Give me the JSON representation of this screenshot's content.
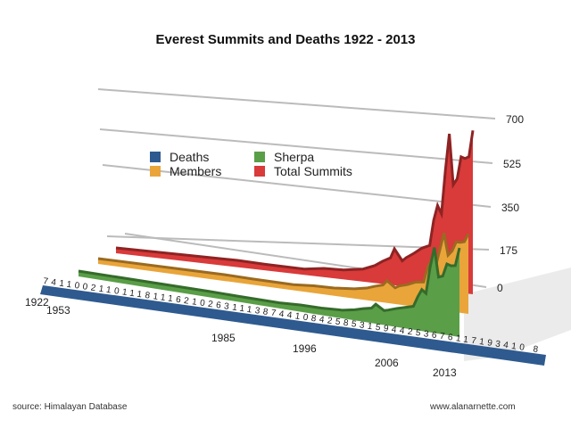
{
  "chart_data": {
    "type": "area",
    "title": "Everest Summits and Deaths 1922 - 2013",
    "style": "3d-stacked-rows",
    "x_tick_labels": [
      "1922",
      "1953",
      "1985",
      "1996",
      "2006",
      "2013"
    ],
    "y_tick_labels": [
      "0",
      "175",
      "350",
      "525",
      "700"
    ],
    "ylim": [
      0,
      700
    ],
    "legend": [
      {
        "name": "Deaths",
        "color": "#2e5a8f"
      },
      {
        "name": "Members",
        "color": "#e9a53a"
      },
      {
        "name": "Sherpa",
        "color": "#5a9e48"
      },
      {
        "name": "Total Summits",
        "color": "#d93a3a"
      }
    ],
    "legend_placement": "top-left",
    "x": [
      1922,
      1953,
      1960,
      1970,
      1975,
      1980,
      1985,
      1988,
      1990,
      1992,
      1993,
      1995,
      1996,
      1998,
      2000,
      2002,
      2003,
      2004,
      2005,
      2006,
      2007,
      2008,
      2009,
      2010,
      2011,
      2012,
      2013
    ],
    "series": [
      {
        "name": "Total Summits",
        "values": [
          0,
          6,
          3,
          2,
          14,
          17,
          30,
          50,
          72,
          90,
          129,
          83,
          98,
          120,
          145,
          160,
          266,
          330,
          297,
          480,
          633,
          423,
          450,
          543,
          538,
          547,
          658
        ]
      },
      {
        "name": "Members",
        "values": [
          0,
          4,
          2,
          1,
          8,
          10,
          18,
          28,
          40,
          50,
          70,
          45,
          55,
          65,
          80,
          85,
          150,
          180,
          160,
          230,
          300,
          210,
          230,
          270,
          270,
          275,
          310
        ]
      },
      {
        "name": "Sherpa",
        "values": [
          0,
          2,
          1,
          1,
          6,
          7,
          12,
          22,
          32,
          40,
          59,
          38,
          43,
          55,
          65,
          75,
          116,
          150,
          137,
          250,
          333,
          213,
          220,
          273,
          268,
          272,
          348
        ]
      },
      {
        "name": "Deaths",
        "values": [
          7,
          1,
          0,
          2,
          2,
          6,
          8,
          10,
          4,
          4,
          8,
          4,
          15,
          6,
          5,
          4,
          6,
          7,
          6,
          17,
          7,
          1,
          9,
          3,
          4,
          10,
          8
        ]
      }
    ],
    "deaths_label_text": "7411002110111811162102631113874410842585315944253676117193410 8"
  },
  "footer": {
    "source": "source: Himalayan Database",
    "site": "www.alanarnette.com"
  }
}
